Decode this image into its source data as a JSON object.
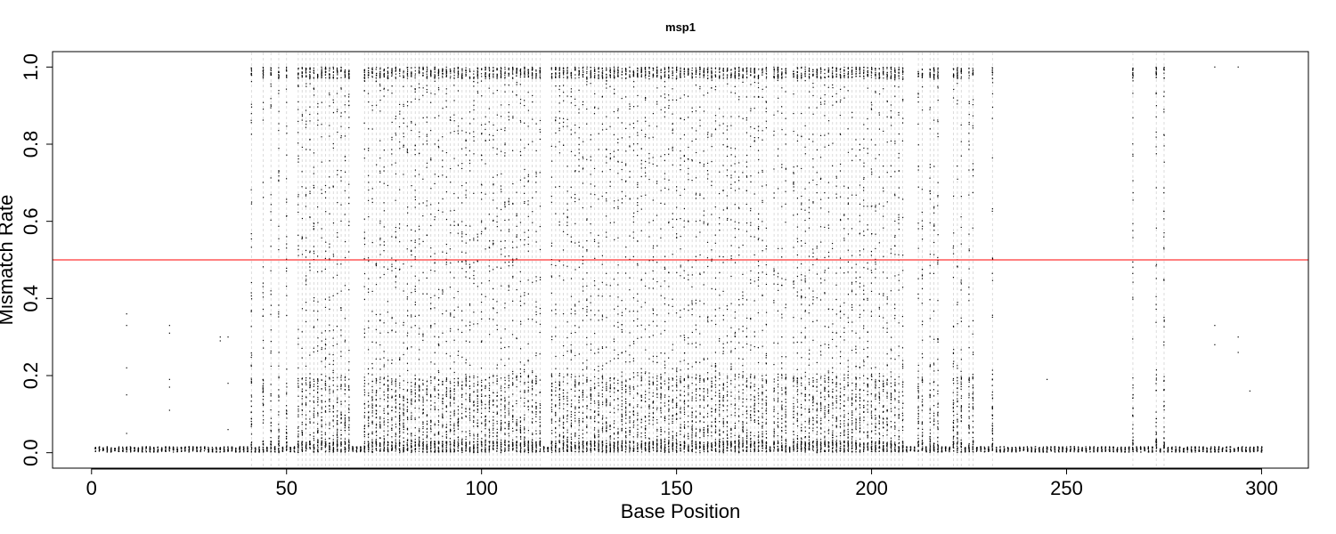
{
  "chart_data": {
    "type": "scatter",
    "title": "msp1",
    "xlabel": "Base Position",
    "ylabel": "Mismatch Rate",
    "xlim": [
      -10,
      312
    ],
    "ylim": [
      -0.04,
      1.04
    ],
    "xticks": [
      0,
      50,
      100,
      150,
      200,
      250,
      300
    ],
    "xtick_labels": [
      "0",
      "50",
      "100",
      "150",
      "200",
      "250",
      "300"
    ],
    "yticks": [
      0,
      0.2,
      0.4,
      0.6,
      0.8,
      1.0
    ],
    "ytick_labels": [
      "0.0",
      "0.2",
      "0.4",
      "0.6",
      "0.8",
      "1.0"
    ],
    "threshold": {
      "y": 0.5,
      "color": "#ff0000"
    },
    "point_color": "#000000",
    "gridline_color": "#d3d3d3",
    "variable_positions": [
      41,
      44,
      46,
      48,
      50,
      53,
      54,
      55,
      56,
      57,
      58,
      59,
      60,
      61,
      62,
      63,
      64,
      65,
      66,
      70,
      71,
      72,
      73,
      74,
      75,
      76,
      77,
      78,
      79,
      80,
      81,
      82,
      83,
      84,
      85,
      86,
      87,
      88,
      89,
      90,
      91,
      92,
      93,
      94,
      95,
      96,
      97,
      98,
      99,
      100,
      101,
      102,
      103,
      104,
      105,
      106,
      107,
      108,
      109,
      110,
      111,
      112,
      113,
      114,
      115,
      118,
      119,
      120,
      121,
      122,
      123,
      124,
      125,
      126,
      127,
      128,
      129,
      130,
      131,
      132,
      133,
      134,
      135,
      136,
      137,
      138,
      139,
      140,
      141,
      142,
      143,
      144,
      145,
      146,
      147,
      148,
      149,
      150,
      151,
      152,
      153,
      154,
      155,
      156,
      157,
      158,
      159,
      160,
      161,
      162,
      163,
      164,
      165,
      166,
      167,
      168,
      169,
      170,
      171,
      172,
      173,
      175,
      176,
      177,
      178,
      180,
      181,
      182,
      183,
      184,
      185,
      186,
      187,
      188,
      189,
      190,
      191,
      192,
      193,
      194,
      195,
      196,
      197,
      198,
      199,
      200,
      201,
      202,
      203,
      204,
      205,
      206,
      207,
      208,
      212,
      213,
      215,
      216,
      217,
      221,
      222,
      223,
      225,
      226,
      231,
      267,
      273,
      275
    ],
    "baseline_low": 0.005,
    "baseline_high": 0.03
  }
}
